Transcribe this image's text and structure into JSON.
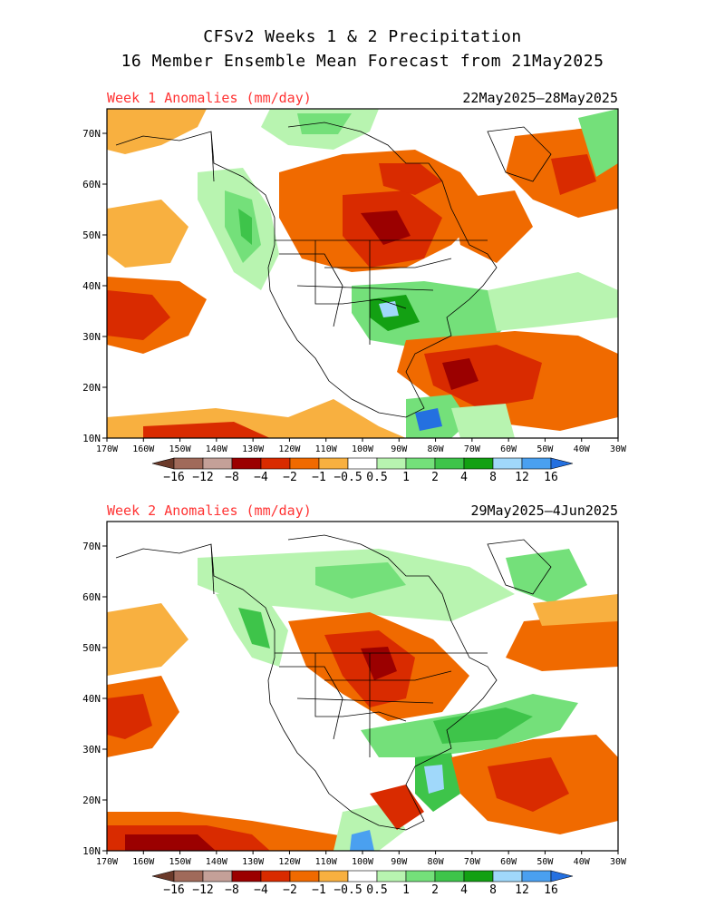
{
  "header": {
    "title_line1": "CFSv2 Weeks 1 & 2 Precipitation",
    "title_line2": "16 Member Ensemble Mean Forecast from 21May2025"
  },
  "panels": [
    {
      "label": "Week 1 Anomalies (mm/day)",
      "dates": "22May2025–28May2025"
    },
    {
      "label": "Week 2 Anomalies (mm/day)",
      "dates": "29May2025—4Jun2025"
    }
  ],
  "axes": {
    "lat_labels": [
      "70N",
      "60N",
      "50N",
      "40N",
      "30N",
      "20N",
      "10N"
    ],
    "lon_labels": [
      "170W",
      "160W",
      "150W",
      "140W",
      "130W",
      "120W",
      "110W",
      "100W",
      "90W",
      "80W",
      "70W",
      "60W",
      "50W",
      "40W",
      "30W"
    ]
  },
  "colorbar": {
    "labels": [
      "−16",
      "−12",
      "−8",
      "−4",
      "−2",
      "−1",
      "−0.5",
      "0.5",
      "1",
      "2",
      "4",
      "8",
      "12",
      "16"
    ],
    "colors": [
      "#6b3a2a",
      "#a06a5a",
      "#c4a098",
      "#9b0000",
      "#d92b00",
      "#f06a00",
      "#f8b040",
      "#ffffff",
      "#b8f4b0",
      "#74e07a",
      "#3ec44a",
      "#13a013",
      "#a0d8fa",
      "#4aa0f0",
      "#2470e0"
    ]
  },
  "map_colors": {
    "dry_light": "#f8b040",
    "dry_med": "#f06a00",
    "dry_strong": "#d92b00",
    "dry_xstrong": "#9b0000",
    "wet_light": "#b8f4b0",
    "wet_med": "#74e07a",
    "wet_strong": "#3ec44a",
    "wet_xstrong": "#13a013",
    "wet_extreme": "#a0d8fa"
  }
}
